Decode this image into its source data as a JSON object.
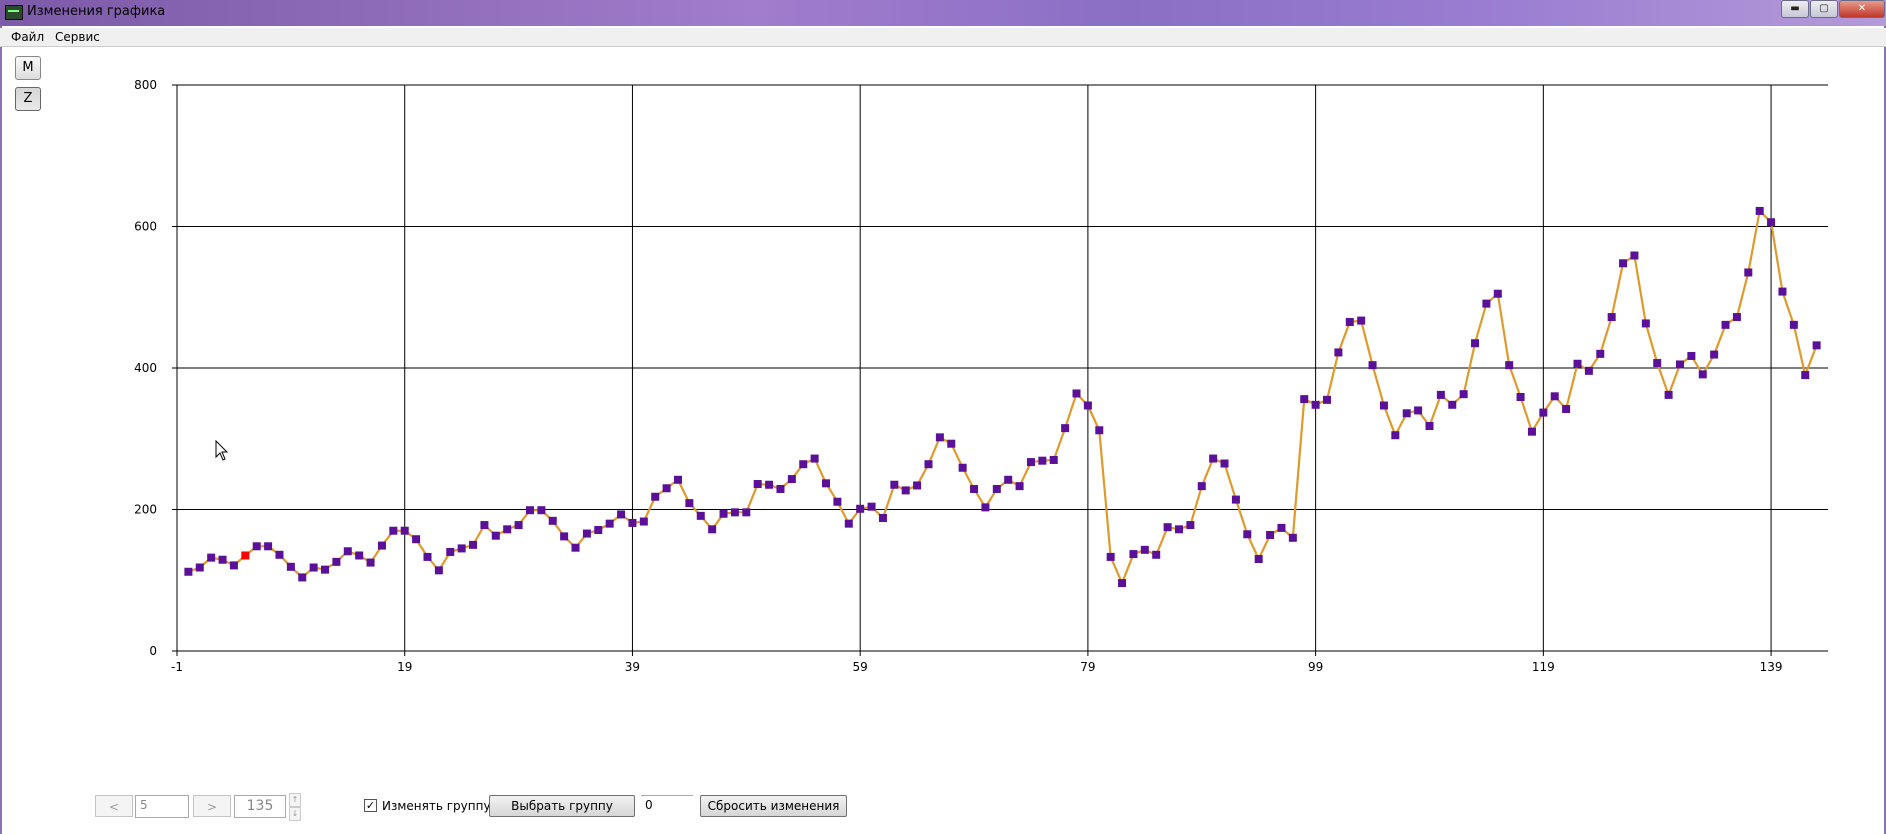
{
  "window": {
    "title": "Изменения графика",
    "minimize": "▬",
    "maximize": "▢",
    "close": "✕"
  },
  "menu": {
    "items": [
      "Файл",
      "Сервис"
    ]
  },
  "toolbar": {
    "m_label": "M",
    "z_label": "Z"
  },
  "chart_data": {
    "type": "line",
    "title": "",
    "xlabel": "",
    "ylabel": "",
    "xlim": [
      -1,
      144
    ],
    "ylim": [
      0,
      800
    ],
    "x_ticks": [
      -1,
      19,
      39,
      59,
      79,
      99,
      119,
      139
    ],
    "y_ticks": [
      0,
      200,
      400,
      600,
      800
    ],
    "grid": true,
    "x_start": 0,
    "colors": {
      "line": "#e09a2c",
      "marker": "#5a1098",
      "selected": "#ff0000"
    },
    "selected_index": 5,
    "values": [
      112,
      118,
      132,
      129,
      121,
      135,
      148,
      148,
      136,
      119,
      104,
      118,
      115,
      126,
      141,
      135,
      125,
      149,
      170,
      170,
      158,
      133,
      114,
      140,
      145,
      150,
      178,
      163,
      172,
      178,
      199,
      199,
      184,
      162,
      146,
      166,
      171,
      180,
      193,
      181,
      183,
      218,
      230,
      242,
      209,
      191,
      172,
      194,
      196,
      196,
      236,
      235,
      229,
      243,
      264,
      272,
      237,
      211,
      180,
      201,
      204,
      188,
      235,
      227,
      234,
      264,
      302,
      293,
      259,
      229,
      203,
      229,
      242,
      233,
      267,
      269,
      270,
      315,
      364,
      347,
      312,
      133,
      96,
      137,
      143,
      136,
      175,
      172,
      178,
      233,
      272,
      265,
      214,
      165,
      130,
      164,
      174,
      160,
      356,
      348,
      355,
      422,
      465,
      467,
      404,
      347,
      305,
      336,
      340,
      318,
      362,
      348,
      363,
      435,
      491,
      505,
      404,
      359,
      310,
      337,
      360,
      342,
      406,
      396,
      420,
      472,
      548,
      559,
      463,
      407,
      362,
      405,
      417,
      391,
      419,
      461,
      472,
      535,
      622,
      606,
      508,
      461,
      390,
      432
    ]
  },
  "bottom": {
    "prev_label": "<",
    "next_label": ">",
    "position_value": "5",
    "count_value": "135",
    "spin_up": "↑",
    "spin_down": "↓",
    "group_checkbox_checked": true,
    "check_mark": "✓",
    "group_checkbox_label": "Изменять группу",
    "select_group_label": "Выбрать группу",
    "group_value": "0",
    "reset_label": "Сбросить изменения"
  }
}
